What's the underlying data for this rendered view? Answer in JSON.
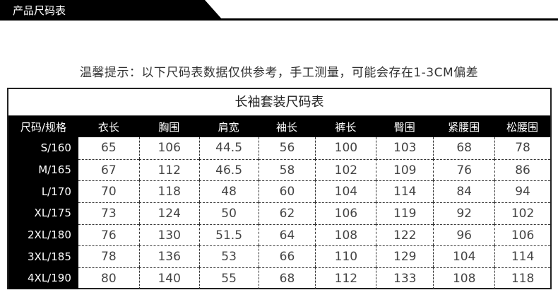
{
  "banner": {
    "title": "产品尺码表"
  },
  "hint": "温馨提示：以下尺码表数据仅供参考，手工测量，可能会存在1-3CM偏差",
  "table": {
    "title": "长袖套装尺码表",
    "headers": [
      "尺码/规格",
      "衣长",
      "胸围",
      "肩宽",
      "袖长",
      "裤长",
      "臀围",
      "紧腰围",
      "松腰围"
    ],
    "rows": [
      [
        "S/160",
        "65",
        "106",
        "44.5",
        "56",
        "100",
        "103",
        "68",
        "78"
      ],
      [
        "M/165",
        "67",
        "112",
        "46.5",
        "58",
        "102",
        "109",
        "76",
        "86"
      ],
      [
        "L/170",
        "70",
        "118",
        "48",
        "60",
        "104",
        "114",
        "84",
        "94"
      ],
      [
        "XL/175",
        "73",
        "124",
        "50",
        "62",
        "106",
        "119",
        "92",
        "102"
      ],
      [
        "2XL/180",
        "76",
        "130",
        "51.5",
        "64",
        "108",
        "122",
        "96",
        "106"
      ],
      [
        "3XL/185",
        "78",
        "136",
        "53",
        "66",
        "110",
        "129",
        "104",
        "114"
      ],
      [
        "4XL/190",
        "80",
        "140",
        "55",
        "68",
        "112",
        "133",
        "108",
        "118"
      ]
    ]
  }
}
